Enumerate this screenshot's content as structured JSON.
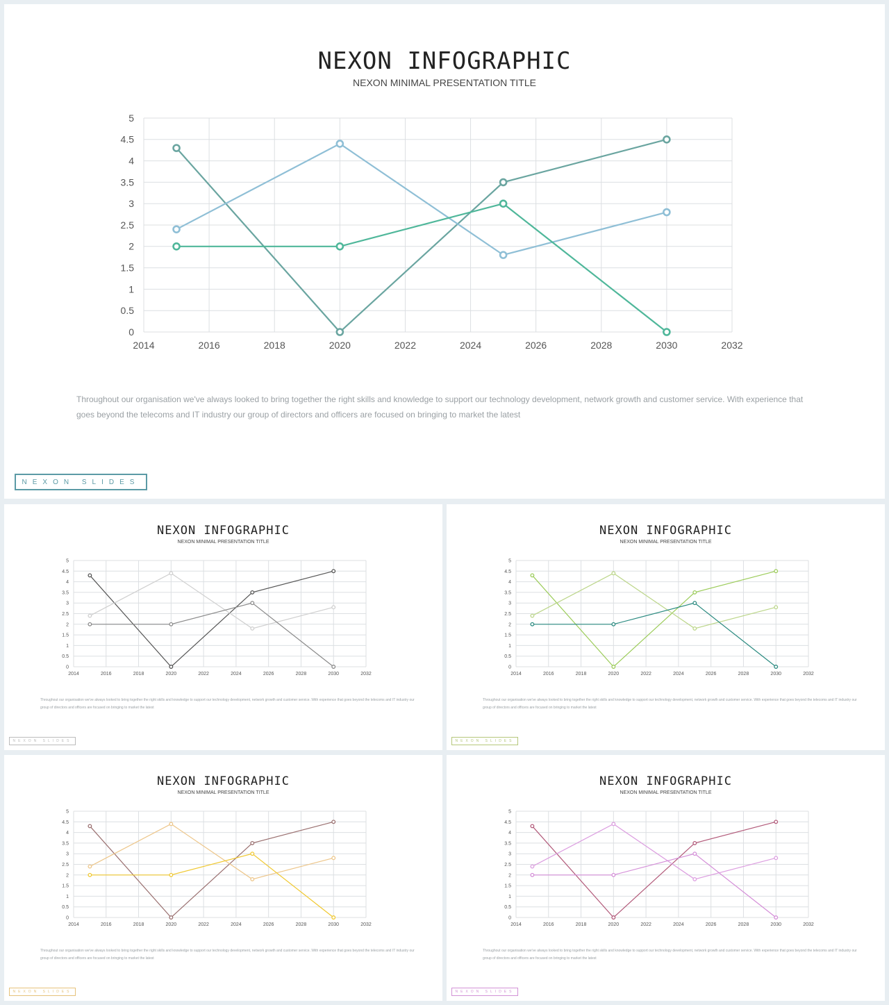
{
  "slides": [
    {
      "title": "NEXON INFOGRAPHIC",
      "subtitle": "NEXON MINIMAL PRESENTATION TITLE",
      "body": "Throughout our organisation we've always looked to bring together the right skills and knowledge to support our technology development, network growth and customer service. With experience that goes beyond the telecoms and IT industry our group of directors and officers are focused on bringing to market the latest",
      "brand": "NEXON SLIDES",
      "brand_color": "#5b9aa5",
      "series_colors": [
        "#6aa5a0",
        "#8fbfd6",
        "#4fb79a"
      ]
    },
    {
      "title": "NEXON INFOGRAPHIC",
      "subtitle": "NEXON MINIMAL PRESENTATION TITLE",
      "body": "Throughout our organisation we've always looked to bring together the right skills and knowledge to support our technology development, network growth and customer service. With experience that goes beyond the telecoms and IT industry our group of directors and officers are focused on bringing to market the latest",
      "brand": "NEXON SLIDES",
      "brand_color": "#bbbbbb",
      "series_colors": [
        "#555555",
        "#cfcfcf",
        "#8a8a8a"
      ]
    },
    {
      "title": "NEXON INFOGRAPHIC",
      "subtitle": "NEXON MINIMAL PRESENTATION TITLE",
      "body": "Throughout our organisation we've always looked to bring together the right skills and knowledge to support our technology development, network growth and customer service. With experience that goes beyond the telecoms and IT industry our group of directors and officers are focused on bringing to market the latest",
      "brand": "NEXON SLIDES",
      "brand_color": "#b5c77a",
      "series_colors": [
        "#9ccc5a",
        "#bcd68a",
        "#2a8a80"
      ]
    },
    {
      "title": "NEXON INFOGRAPHIC",
      "subtitle": "NEXON MINIMAL PRESENTATION TITLE",
      "body": "Throughout our organisation we've always looked to bring together the right skills and knowledge to support our technology development, network growth and customer service. With experience that goes beyond the telecoms and IT industry our group of directors and officers are focused on bringing to market the latest",
      "brand": "NEXON SLIDES",
      "brand_color": "#e6c27a",
      "series_colors": [
        "#9a7070",
        "#edc68a",
        "#f0c830"
      ]
    },
    {
      "title": "NEXON INFOGRAPHIC",
      "subtitle": "NEXON MINIMAL PRESENTATION TITLE",
      "body": "Throughout our organisation we've always looked to bring together the right skills and knowledge to support our technology development, network growth and customer service. With experience that goes beyond the telecoms and IT industry our group of directors and officers are focused on bringing to market the latest",
      "brand": "NEXON SLIDES",
      "brand_color": "#d291d6",
      "series_colors": [
        "#b25a7a",
        "#dc9ee0",
        "#d48ed8"
      ]
    }
  ],
  "chart_data": {
    "type": "scatter",
    "mode": "lines+markers",
    "xlim": [
      2014,
      2032
    ],
    "ylim": [
      0,
      5
    ],
    "xticks": [
      2014,
      2016,
      2018,
      2020,
      2022,
      2024,
      2026,
      2028,
      2030,
      2032
    ],
    "yticks": [
      0,
      0.5,
      1,
      1.5,
      2,
      2.5,
      3,
      3.5,
      4,
      4.5,
      5
    ],
    "grid": true,
    "legend": false,
    "series": [
      {
        "x": [
          2015,
          2020,
          2025,
          2030
        ],
        "y": [
          4.3,
          0,
          3.5,
          4.5
        ]
      },
      {
        "x": [
          2015,
          2020,
          2025,
          2030
        ],
        "y": [
          2.4,
          4.4,
          1.8,
          2.8
        ]
      },
      {
        "x": [
          2015,
          2020,
          2025,
          2030
        ],
        "y": [
          2,
          2,
          3,
          0
        ]
      }
    ]
  }
}
